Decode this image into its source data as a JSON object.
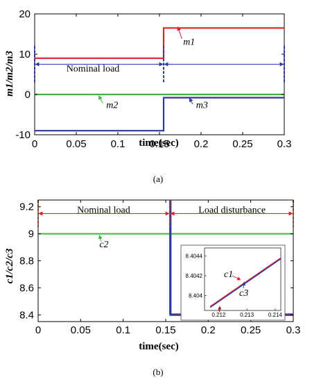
{
  "chart_data": [
    {
      "type": "line",
      "caption": "(a)",
      "xlabel": "time(sec)",
      "ylabel": "m1/m2/m3",
      "xlim": [
        0,
        0.3
      ],
      "ylim": [
        -10,
        20
      ],
      "x_ticks": [
        "0",
        "0.05",
        "0.1",
        "0.15",
        "0.2",
        "0.25",
        "0.3"
      ],
      "y_ticks": [
        "-10",
        "0",
        "10",
        "20"
      ],
      "grid": false,
      "switch_time": 0.155,
      "series": [
        {
          "name": "m1",
          "color": "#e0202a",
          "x": [
            0,
            0.155,
            0.155,
            0.3
          ],
          "y": [
            9,
            9,
            16.5,
            16.5
          ]
        },
        {
          "name": "m2",
          "color": "#3cb53c",
          "x": [
            0,
            0.3
          ],
          "y": [
            0,
            0
          ]
        },
        {
          "name": "m3",
          "color": "#2b3a9e",
          "x": [
            0,
            0.155,
            0.155,
            0.3
          ],
          "y": [
            -9,
            -9,
            -0.8,
            -0.8
          ]
        }
      ],
      "annotations": [
        {
          "text": "Nominal load",
          "x": 0.07,
          "y": 5.7
        },
        {
          "text": "m1",
          "x": 0.176,
          "y": 12.3
        },
        {
          "text": "m2",
          "x": 0.086,
          "y": -3.4
        },
        {
          "text": "m3",
          "x": 0.194,
          "y": -3.4
        }
      ]
    },
    {
      "type": "line",
      "caption": "(b)",
      "xlabel": "time(sec)",
      "ylabel": "c1/c2/c3",
      "xlim": [
        0,
        0.3
      ],
      "ylim": [
        8.35,
        9.25
      ],
      "x_ticks": [
        "0",
        "0.05",
        "0.1",
        "0.15",
        "0.2",
        "0.25",
        "0.3"
      ],
      "y_ticks": [
        "8.4",
        "8.6",
        "8.8",
        "9",
        "9.2"
      ],
      "grid": false,
      "switch_time": 0.155,
      "series": [
        {
          "name": "c2",
          "color": "#3cb53c",
          "x": [
            0,
            0.3
          ],
          "y": [
            9,
            9
          ]
        },
        {
          "name": "c1",
          "color": "#e0202a",
          "x": [
            0,
            0.155,
            0.155,
            0.3
          ],
          "y": [
            9.25,
            9.25,
            8.404,
            8.404
          ]
        },
        {
          "name": "c3",
          "color": "#2b3a9e",
          "x": [
            0,
            0.155,
            0.155,
            0.3
          ],
          "y": [
            9.25,
            9.25,
            8.404,
            8.404
          ]
        }
      ],
      "annotations": [
        {
          "text": "Nominal load",
          "x": 0.077,
          "y": 9.18
        },
        {
          "text": "Load disturbance",
          "x": 0.228,
          "y": 9.18
        },
        {
          "text": "c2",
          "x": 0.072,
          "y": 8.93
        }
      ],
      "inset": {
        "xlim": [
          0.2115,
          0.2142
        ],
        "ylim": [
          8.40385,
          8.40448
        ],
        "x_ticks": [
          "0.212",
          "0.213",
          "0.214"
        ],
        "y_ticks": [
          "8.404",
          "8.4042",
          "8.4044"
        ],
        "series": [
          {
            "name": "c1",
            "color": "#e0202a",
            "x": [
              0.2117,
              0.2142
            ],
            "y": [
              8.40389,
              8.40438
            ]
          },
          {
            "name": "c3",
            "color": "#2b3a9e",
            "x": [
              0.2117,
              0.2142
            ],
            "y": [
              8.40388,
              8.40437
            ]
          }
        ],
        "labels": [
          "c1",
          "c3"
        ]
      }
    }
  ]
}
